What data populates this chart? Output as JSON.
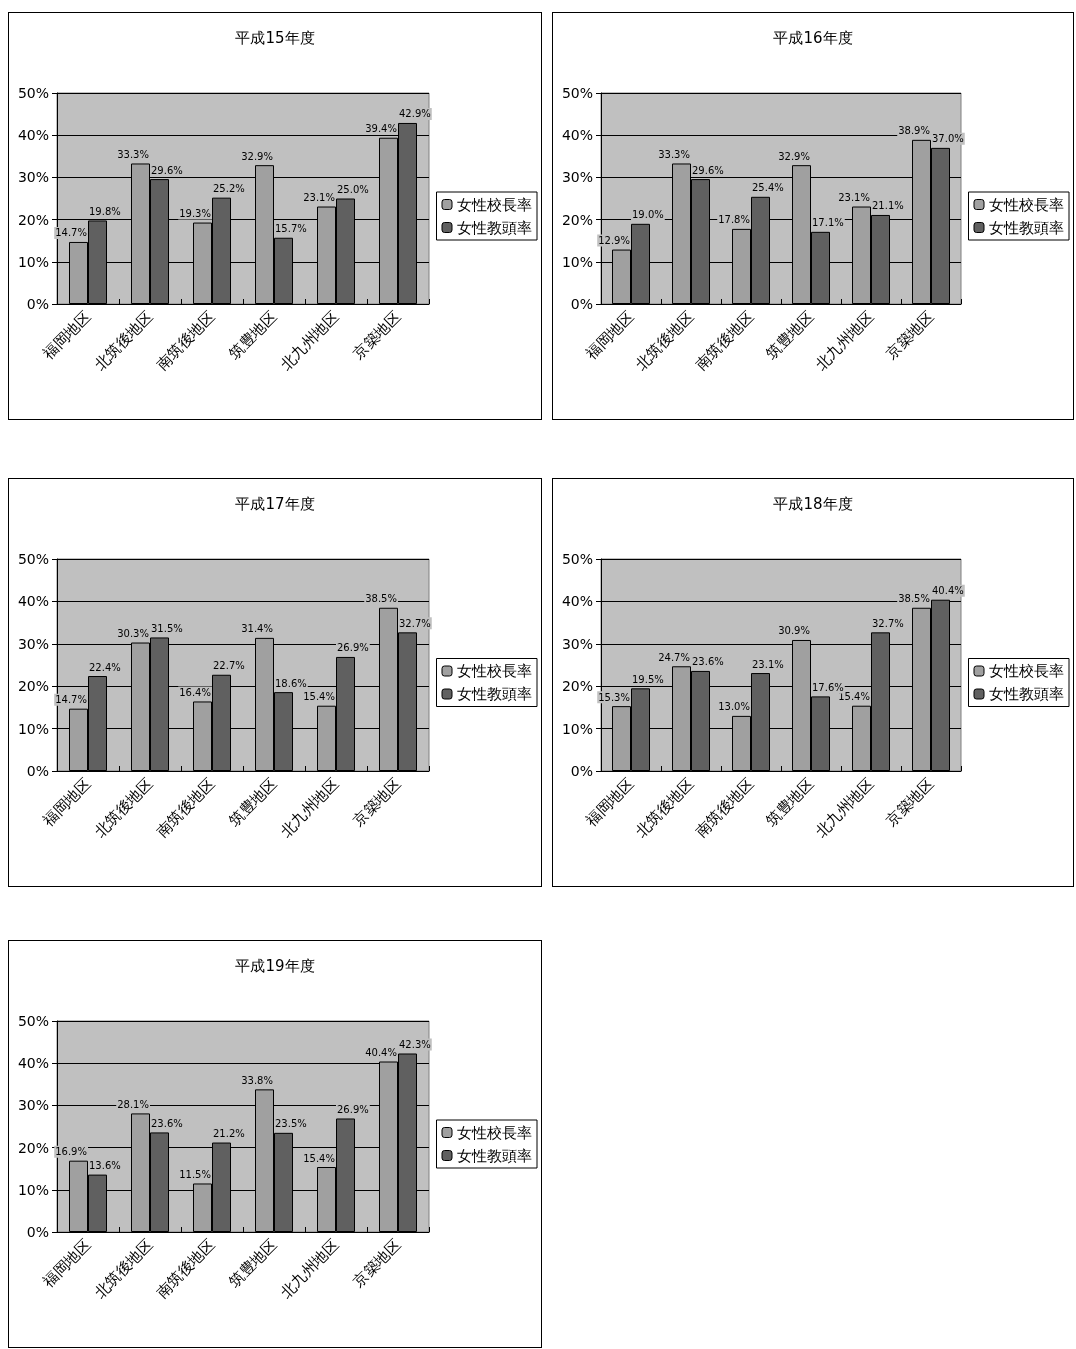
{
  "chart_data": [
    {
      "type": "bar",
      "title": "平成15年度",
      "categories": [
        "福岡地区",
        "北筑後地区",
        "南筑後地区",
        "筑豊地区",
        "北九州地区",
        "京築地区"
      ],
      "ylim": [
        0,
        50
      ],
      "yticks": [
        {
          "value": 0,
          "label": "0%"
        },
        {
          "value": 10,
          "label": "10%"
        },
        {
          "value": 20,
          "label": "20%"
        },
        {
          "value": 30,
          "label": "30%"
        },
        {
          "value": 40,
          "label": "40%"
        },
        {
          "value": 50,
          "label": "50%"
        }
      ],
      "grid": "y",
      "legend": "right",
      "series": [
        {
          "name": "女性校長率",
          "color": "#a0a0a0",
          "values": [
            14.7,
            33.3,
            19.3,
            32.9,
            23.1,
            39.4
          ],
          "value_labels": [
            "14.7%",
            "33.3%",
            "19.3%",
            "32.9%",
            "23.1%",
            "39.4%"
          ]
        },
        {
          "name": "女性教頭率",
          "color": "#606060",
          "values": [
            19.8,
            29.6,
            25.2,
            15.7,
            25.0,
            42.9
          ],
          "value_labels": [
            "19.8%",
            "29.6%",
            "25.2%",
            "15.7%",
            "25.0%",
            "42.9%"
          ]
        }
      ]
    },
    {
      "type": "bar",
      "title": "平成16年度",
      "categories": [
        "福岡地区",
        "北筑後地区",
        "南筑後地区",
        "筑豊地区",
        "北九州地区",
        "京築地区"
      ],
      "ylim": [
        0,
        50
      ],
      "yticks": [
        {
          "value": 0,
          "label": "0%"
        },
        {
          "value": 10,
          "label": "10%"
        },
        {
          "value": 20,
          "label": "20%"
        },
        {
          "value": 30,
          "label": "30%"
        },
        {
          "value": 40,
          "label": "40%"
        },
        {
          "value": 50,
          "label": "50%"
        }
      ],
      "grid": "y",
      "legend": "right",
      "series": [
        {
          "name": "女性校長率",
          "color": "#a0a0a0",
          "values": [
            12.9,
            33.3,
            17.8,
            32.9,
            23.1,
            38.9
          ],
          "value_labels": [
            "12.9%",
            "33.3%",
            "17.8%",
            "32.9%",
            "23.1%",
            "38.9%"
          ]
        },
        {
          "name": "女性教頭率",
          "color": "#606060",
          "values": [
            19.0,
            29.6,
            25.4,
            17.1,
            21.1,
            37.0
          ],
          "value_labels": [
            "19.0%",
            "29.6%",
            "25.4%",
            "17.1%",
            "21.1%",
            "37.0%"
          ]
        }
      ]
    },
    {
      "type": "bar",
      "title": "平成17年度",
      "categories": [
        "福岡地区",
        "北筑後地区",
        "南筑後地区",
        "筑豊地区",
        "北九州地区",
        "京築地区"
      ],
      "ylim": [
        0,
        50
      ],
      "yticks": [
        {
          "value": 0,
          "label": "0%"
        },
        {
          "value": 10,
          "label": "10%"
        },
        {
          "value": 20,
          "label": "20%"
        },
        {
          "value": 30,
          "label": "30%"
        },
        {
          "value": 40,
          "label": "40%"
        },
        {
          "value": 50,
          "label": "50%"
        }
      ],
      "grid": "y",
      "legend": "right",
      "series": [
        {
          "name": "女性校長率",
          "color": "#a0a0a0",
          "values": [
            14.7,
            30.3,
            16.4,
            31.4,
            15.4,
            38.5
          ],
          "value_labels": [
            "14.7%",
            "30.3%",
            "16.4%",
            "31.4%",
            "15.4%",
            "38.5%"
          ]
        },
        {
          "name": "女性教頭率",
          "color": "#606060",
          "values": [
            22.4,
            31.5,
            22.7,
            18.6,
            26.9,
            32.7
          ],
          "value_labels": [
            "22.4%",
            "31.5%",
            "22.7%",
            "18.6%",
            "26.9%",
            "32.7%"
          ]
        }
      ]
    },
    {
      "type": "bar",
      "title": "平成18年度",
      "categories": [
        "福岡地区",
        "北筑後地区",
        "南筑後地区",
        "筑豊地区",
        "北九州地区",
        "京築地区"
      ],
      "ylim": [
        0,
        50
      ],
      "yticks": [
        {
          "value": 0,
          "label": "0%"
        },
        {
          "value": 10,
          "label": "10%"
        },
        {
          "value": 20,
          "label": "20%"
        },
        {
          "value": 30,
          "label": "30%"
        },
        {
          "value": 40,
          "label": "40%"
        },
        {
          "value": 50,
          "label": "50%"
        }
      ],
      "grid": "y",
      "legend": "right",
      "series": [
        {
          "name": "女性校長率",
          "color": "#a0a0a0",
          "values": [
            15.3,
            24.7,
            13.0,
            30.9,
            15.4,
            38.5
          ],
          "value_labels": [
            "15.3%",
            "24.7%",
            "13.0%",
            "30.9%",
            "15.4%",
            "38.5%"
          ]
        },
        {
          "name": "女性教頭率",
          "color": "#606060",
          "values": [
            19.5,
            23.6,
            23.1,
            17.6,
            32.7,
            40.4
          ],
          "value_labels": [
            "19.5%",
            "23.6%",
            "23.1%",
            "17.6%",
            "32.7%",
            "40.4%"
          ]
        }
      ]
    },
    {
      "type": "bar",
      "title": "平成19年度",
      "categories": [
        "福岡地区",
        "北筑後地区",
        "南筑後地区",
        "筑豊地区",
        "北九州地区",
        "京築地区"
      ],
      "ylim": [
        0,
        50
      ],
      "yticks": [
        {
          "value": 0,
          "label": "0%"
        },
        {
          "value": 10,
          "label": "10%"
        },
        {
          "value": 20,
          "label": "20%"
        },
        {
          "value": 30,
          "label": "30%"
        },
        {
          "value": 40,
          "label": "40%"
        },
        {
          "value": 50,
          "label": "50%"
        }
      ],
      "grid": "y",
      "legend": "right",
      "series": [
        {
          "name": "女性校長率",
          "color": "#a0a0a0",
          "values": [
            16.9,
            28.1,
            11.5,
            33.8,
            15.4,
            40.4
          ],
          "value_labels": [
            "16.9%",
            "28.1%",
            "11.5%",
            "33.8%",
            "15.4%",
            "40.4%"
          ]
        },
        {
          "name": "女性教頭率",
          "color": "#606060",
          "values": [
            13.6,
            23.6,
            21.2,
            23.5,
            26.9,
            42.3
          ],
          "value_labels": [
            "13.6%",
            "23.6%",
            "21.2%",
            "23.5%",
            "26.9%",
            "42.3%"
          ]
        }
      ]
    }
  ]
}
